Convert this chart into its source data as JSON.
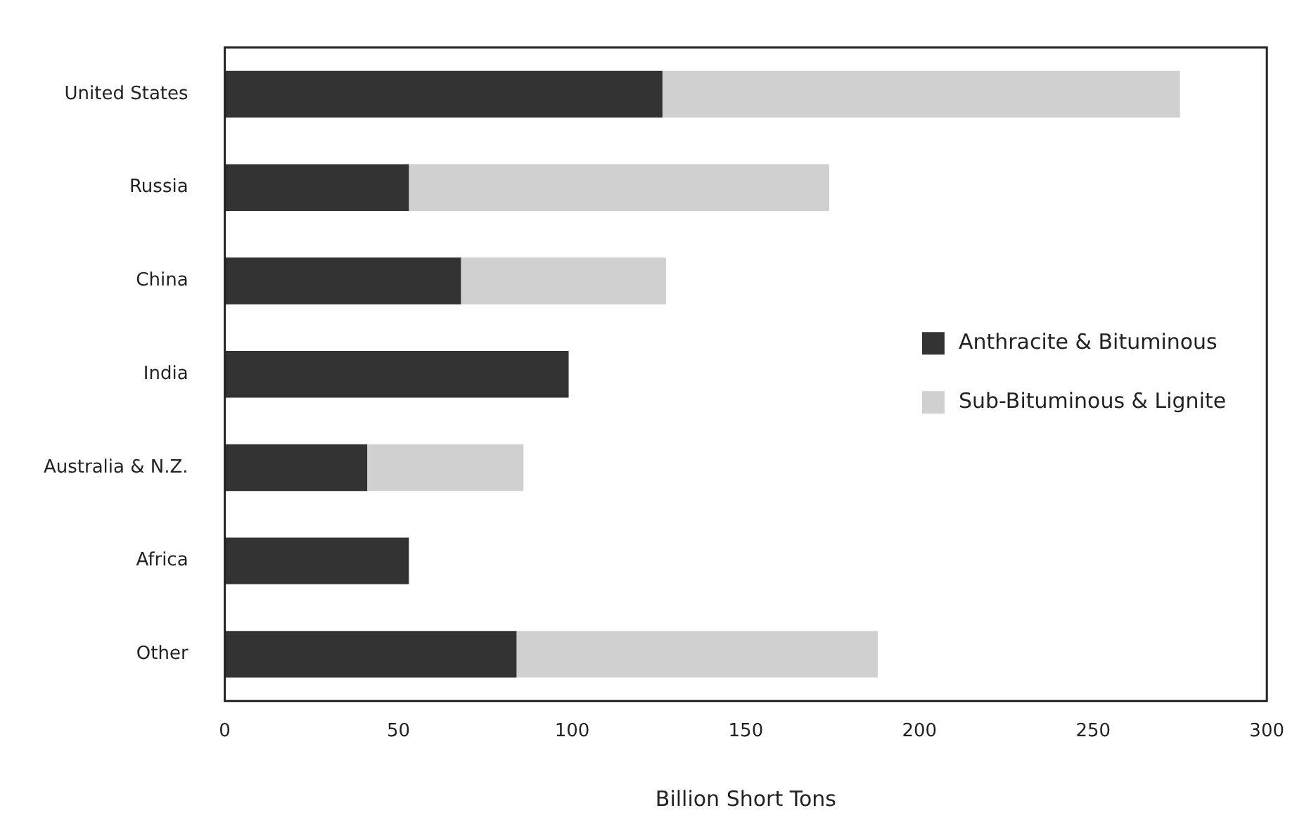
{
  "chart_data": {
    "type": "bar",
    "orientation": "horizontal",
    "stacked": true,
    "categories": [
      "United States",
      "Russia",
      "China",
      "India",
      "Australia & N.Z.",
      "Africa",
      "Other"
    ],
    "series": [
      {
        "name": "Anthracite & Bituminous",
        "color": "#333333",
        "values": [
          126,
          53,
          68,
          99,
          41,
          53,
          84
        ]
      },
      {
        "name": "Sub-Bituminous & Lignite",
        "color": "#d0d0d0",
        "values": [
          149,
          121,
          59,
          null,
          45,
          null,
          104
        ]
      }
    ],
    "xlabel": "Billion Short Tons",
    "xlim": [
      0,
      300
    ],
    "xticks": [
      0,
      50,
      100,
      150,
      200,
      250,
      300
    ],
    "grid": false,
    "legend": "right"
  }
}
